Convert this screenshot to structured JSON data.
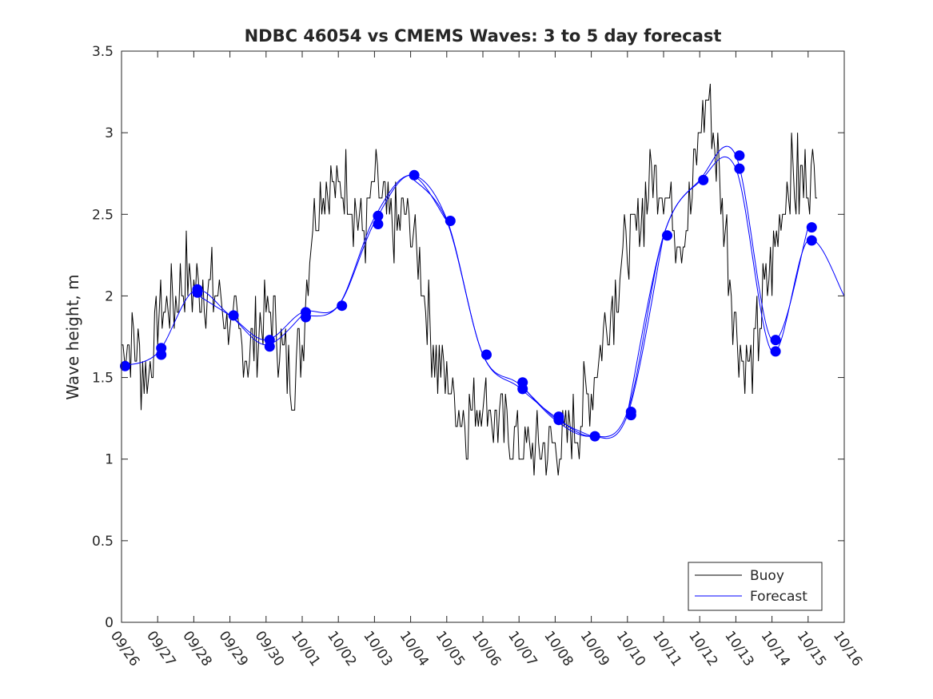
{
  "chart_data": {
    "type": "line",
    "title": "NDBC 46054 vs CMEMS Waves: 3 to 5 day forecast",
    "xlabel": "",
    "ylabel": "Wave height, m",
    "xlim": [
      0,
      20
    ],
    "ylim": [
      0,
      3.5
    ],
    "x_tick_labels": [
      "09/26",
      "09/27",
      "09/28",
      "09/29",
      "09/30",
      "10/01",
      "10/02",
      "10/03",
      "10/04",
      "10/05",
      "10/06",
      "10/07",
      "10/08",
      "10/09",
      "10/10",
      "10/11",
      "10/12",
      "10/13",
      "10/14",
      "10/15",
      "10/16"
    ],
    "y_ticks": [
      0,
      0.5,
      1,
      1.5,
      2,
      2.5,
      3,
      3.5
    ],
    "y_tick_labels": [
      "0",
      "0.5",
      "1",
      "1.5",
      "2",
      "2.5",
      "3",
      "3.5"
    ],
    "legend": {
      "position": "bottom-right",
      "entries": [
        {
          "label": "Buoy",
          "color": "#000000"
        },
        {
          "label": "Forecast",
          "color": "#0000ff"
        }
      ]
    },
    "colors": {
      "buoy": "#000000",
      "forecast": "#0000ff",
      "axes": "#262626"
    },
    "buoy": {
      "name": "Buoy",
      "x": [
        0,
        0.25,
        0.5,
        0.75,
        1.0,
        1.25,
        1.5,
        1.75,
        2.0,
        2.25,
        2.5,
        2.75,
        3.0,
        3.25,
        3.5,
        3.75,
        4.0,
        4.25,
        4.5,
        4.75,
        5.0,
        5.25,
        5.5,
        5.75,
        6.0,
        6.25,
        6.5,
        6.75,
        7.0,
        7.25,
        7.5,
        7.75,
        8.0,
        8.25,
        8.5,
        8.75,
        9.0,
        9.25,
        9.5,
        9.75,
        10.0,
        10.25,
        10.5,
        10.75,
        11.0,
        11.25,
        11.5,
        11.75,
        12.0,
        12.25,
        12.5,
        12.75,
        13.0,
        13.25,
        13.5,
        13.75,
        14.0,
        14.25,
        14.5,
        14.75,
        15.0,
        15.25,
        15.5,
        15.75,
        16.0,
        16.25,
        16.5,
        16.75,
        17.0,
        17.25,
        17.5,
        17.75,
        18.0,
        18.25,
        18.5,
        18.75,
        19.0,
        19.25
      ],
      "values": [
        1.65,
        1.75,
        1.6,
        1.5,
        1.85,
        1.95,
        2.0,
        2.15,
        2.05,
        2.1,
        2.0,
        1.95,
        1.85,
        1.75,
        1.65,
        1.75,
        1.9,
        1.85,
        1.6,
        1.55,
        1.7,
        2.4,
        2.65,
        2.7,
        2.6,
        2.75,
        2.5,
        2.4,
        2.7,
        2.55,
        2.4,
        2.45,
        2.45,
        2.2,
        1.9,
        1.6,
        1.5,
        1.35,
        1.3,
        1.3,
        1.4,
        1.3,
        1.2,
        1.15,
        1.1,
        1.05,
        1.05,
        1.1,
        1.05,
        1.1,
        1.2,
        1.3,
        1.4,
        1.7,
        1.9,
        2.1,
        2.3,
        2.4,
        2.6,
        2.75,
        2.7,
        2.5,
        2.35,
        2.55,
        3.0,
        3.2,
        2.8,
        2.3,
        1.8,
        1.55,
        1.6,
        2.0,
        2.2,
        2.5,
        2.75,
        2.7,
        2.75,
        2.8
      ]
    },
    "forecast_runs": [
      {
        "x": [
          0,
          1,
          2,
          3,
          4,
          5
        ],
        "values": [
          1.57,
          1.65,
          2.03,
          1.88,
          1.7,
          1.88
        ]
      },
      {
        "x": [
          2,
          3,
          4,
          5,
          6,
          7,
          8,
          9
        ],
        "values": [
          2.02,
          1.88,
          1.73,
          1.9,
          1.94,
          2.45,
          2.74,
          2.46
        ]
      },
      {
        "x": [
          5,
          6,
          7,
          8,
          9,
          10,
          11,
          12,
          13
        ],
        "values": [
          1.88,
          1.94,
          2.48,
          2.74,
          2.47,
          1.64,
          1.46,
          1.25,
          1.14
        ]
      },
      {
        "x": [
          8,
          9,
          10,
          11,
          12,
          13,
          14,
          15
        ],
        "values": [
          2.73,
          2.46,
          1.64,
          1.44,
          1.26,
          1.14,
          1.27,
          2.37
        ]
      },
      {
        "x": [
          11,
          12,
          13,
          14,
          15,
          16,
          17,
          18,
          19
        ],
        "values": [
          1.47,
          1.24,
          1.14,
          1.29,
          2.37,
          2.71,
          2.86,
          1.73,
          2.42
        ]
      },
      {
        "x": [
          14,
          15,
          16,
          17,
          18,
          19,
          20
        ],
        "values": [
          1.28,
          2.37,
          2.7,
          2.78,
          1.66,
          2.34,
          2.0
        ]
      }
    ],
    "forecast_markers": {
      "x": [
        0.1,
        1.1,
        1.1,
        2.1,
        2.1,
        3.1,
        4.1,
        4.1,
        5.1,
        5.1,
        6.1,
        7.1,
        7.1,
        8.1,
        9.1,
        10.1,
        11.1,
        11.1,
        12.1,
        12.1,
        13.1,
        14.1,
        14.1,
        15.1,
        16.1,
        17.1,
        17.1,
        18.1,
        18.1,
        19.1,
        19.1
      ],
      "values": [
        1.57,
        1.68,
        1.64,
        2.04,
        2.02,
        1.88,
        1.73,
        1.69,
        1.9,
        1.87,
        1.94,
        2.49,
        2.44,
        2.74,
        2.46,
        1.64,
        1.47,
        1.43,
        1.26,
        1.24,
        1.14,
        1.29,
        1.27,
        2.37,
        2.71,
        2.86,
        2.78,
        1.73,
        1.66,
        2.42,
        2.34
      ]
    }
  }
}
